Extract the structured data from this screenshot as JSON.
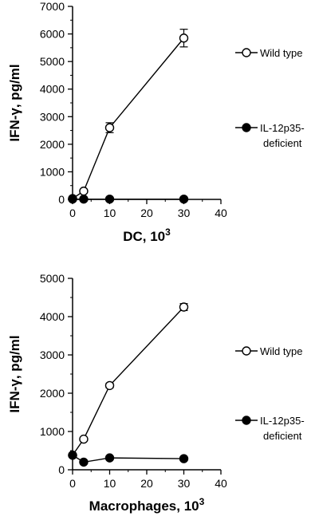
{
  "chart_data": [
    {
      "type": "line",
      "xlabel": "DC, 10",
      "xlabel_sup": "3",
      "ylabel": "IFN-γ, pg/ml",
      "xlim": [
        0,
        40
      ],
      "ylim": [
        0,
        7000
      ],
      "xticks": [
        0,
        10,
        20,
        30,
        40
      ],
      "yticks": [
        0,
        1000,
        2000,
        3000,
        4000,
        5000,
        6000,
        7000
      ],
      "grid": false,
      "legend_position": "right",
      "series": [
        {
          "name": "Wild type",
          "marker": "open-circle",
          "x": [
            0,
            3,
            10,
            30
          ],
          "y": [
            30,
            300,
            2600,
            5850
          ],
          "err": [
            0,
            0,
            180,
            320
          ]
        },
        {
          "name": "IL-12p35-deficient",
          "marker": "filled-circle",
          "x": [
            0,
            3,
            10,
            30
          ],
          "y": [
            10,
            10,
            10,
            10
          ],
          "err": [
            0,
            0,
            0,
            0
          ]
        }
      ]
    },
    {
      "type": "line",
      "xlabel": "Macrophages, 10",
      "xlabel_sup": "3",
      "ylabel": "IFN-γ, pg/ml",
      "xlim": [
        0,
        40
      ],
      "ylim": [
        0,
        5000
      ],
      "xticks": [
        0,
        10,
        20,
        30,
        40
      ],
      "yticks": [
        0,
        1000,
        2000,
        3000,
        4000,
        5000
      ],
      "grid": false,
      "legend_position": "right",
      "series": [
        {
          "name": "Wild type",
          "marker": "open-circle",
          "x": [
            0,
            3,
            10,
            30
          ],
          "y": [
            380,
            800,
            2200,
            4250
          ],
          "err": [
            0,
            0,
            60,
            90
          ]
        },
        {
          "name": "IL-12p35-deficient",
          "marker": "filled-circle",
          "x": [
            0,
            3,
            10,
            30
          ],
          "y": [
            380,
            200,
            310,
            290
          ],
          "err": [
            0,
            0,
            0,
            0
          ]
        }
      ]
    }
  ],
  "legend_labels": {
    "wild_type": "Wild type",
    "deficient_line1": "IL-12p35-",
    "deficient_line2": "deficient"
  }
}
